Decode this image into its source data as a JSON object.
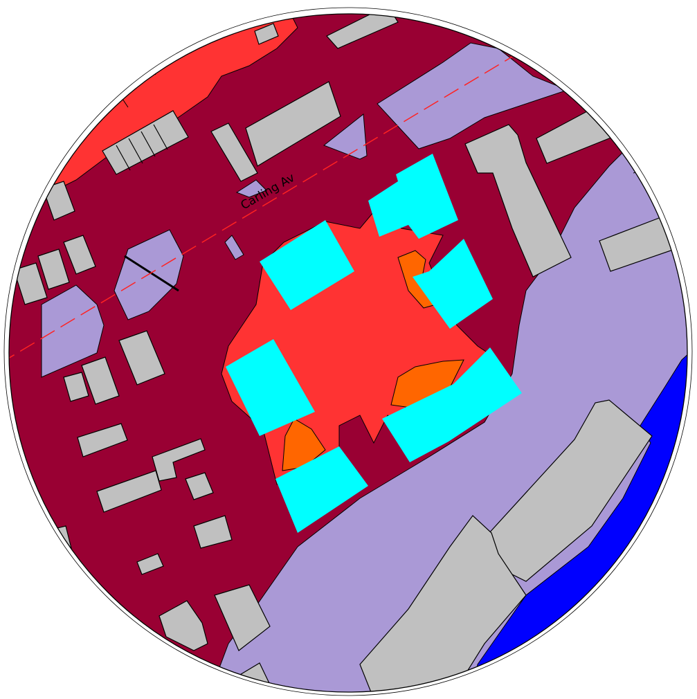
{
  "map": {
    "street_label": "Carling Av",
    "layers": [
      {
        "name": "zone-dark",
        "color": "#990033"
      },
      {
        "name": "zone-red",
        "color": "#ff3333"
      },
      {
        "name": "zone-orange",
        "color": "#ff6600"
      },
      {
        "name": "zone-lavender",
        "color": "#aa99d6"
      },
      {
        "name": "water",
        "color": "#0000ff"
      },
      {
        "name": "building-existing",
        "color": "#c0c0c0"
      },
      {
        "name": "building-proposed",
        "color": "#00ffff"
      },
      {
        "name": "street-centerline",
        "color": "#ff2222"
      }
    ]
  }
}
